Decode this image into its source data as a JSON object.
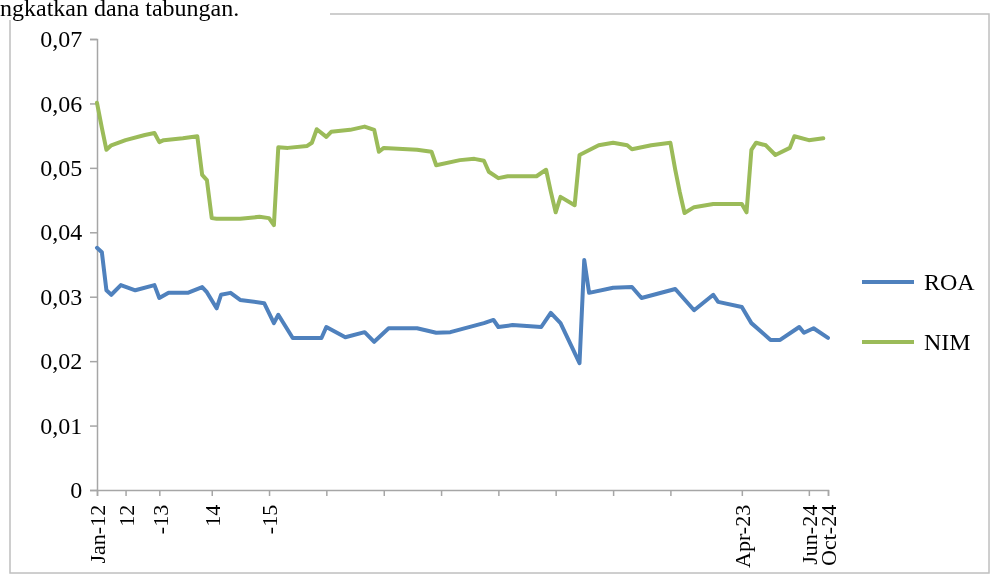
{
  "chart_data": {
    "type": "line",
    "annotations": [
      "ngkatkan dana tabungan."
    ],
    "xlim": [
      "2012-01",
      "2024-10"
    ],
    "xticks": [
      {
        "value": "2012-01",
        "label": "Jan-12"
      },
      {
        "value": "2012-07",
        "label": "12"
      },
      {
        "value": "2013-02",
        "label": "-13"
      },
      {
        "value": "2014-01",
        "label": "14"
      },
      {
        "value": "2015-01",
        "label": "-15"
      },
      {
        "value": "2016-01",
        "label": null
      },
      {
        "value": "2017-01",
        "label": null
      },
      {
        "value": "2018-01",
        "label": null
      },
      {
        "value": "2019-01",
        "label": null
      },
      {
        "value": "2020-01",
        "label": null
      },
      {
        "value": "2021-01",
        "label": null
      },
      {
        "value": "2022-01",
        "label": null
      },
      {
        "value": "2023-04",
        "label": "Apr-23"
      },
      {
        "value": "2024-06",
        "label": "Jun-24"
      },
      {
        "value": "2024-10",
        "label": "Oct-24"
      }
    ],
    "ylim": [
      0,
      0.07
    ],
    "yticks": [
      {
        "value": 0,
        "label": "0"
      },
      {
        "value": 0.01,
        "label": "0,01"
      },
      {
        "value": 0.02,
        "label": "0,02"
      },
      {
        "value": 0.03,
        "label": "0,03"
      },
      {
        "value": 0.04,
        "label": "0,04"
      },
      {
        "value": 0.05,
        "label": "0,05"
      },
      {
        "value": 0.06,
        "label": "0,06"
      },
      {
        "value": 0.07,
        "label": "0,07"
      }
    ],
    "grid": false,
    "legend": "right",
    "line_style": "solid",
    "marker": "none",
    "series": [
      {
        "name": "ROA",
        "color": "#4f81bd",
        "x": [
          "2012-01",
          "2012-02",
          "2012-03",
          "2012-04",
          "2012-06",
          "2012-09",
          "2013-01",
          "2013-02",
          "2013-04",
          "2013-08",
          "2013-11",
          "2013-12",
          "2014-02",
          "2014-03",
          "2014-05",
          "2014-07",
          "2014-12",
          "2015-02",
          "2015-03",
          "2015-06",
          "2015-12",
          "2016-01",
          "2016-05",
          "2016-09",
          "2016-11",
          "2017-02",
          "2017-08",
          "2017-12",
          "2018-03",
          "2018-10",
          "2018-12",
          "2019-01",
          "2019-04",
          "2019-10",
          "2019-12",
          "2020-02",
          "2020-06",
          "2020-07",
          "2020-08",
          "2021-01",
          "2021-05",
          "2021-07",
          "2022-02",
          "2022-06",
          "2022-10",
          "2022-11",
          "2023-04",
          "2023-06",
          "2023-10",
          "2023-12",
          "2024-04",
          "2024-05",
          "2024-07",
          "2024-10"
        ],
        "values": [
          0.0376,
          0.0369,
          0.031,
          0.0303,
          0.0318,
          0.031,
          0.0318,
          0.0298,
          0.0306,
          0.0306,
          0.0315,
          0.0307,
          0.0282,
          0.0303,
          0.0306,
          0.0295,
          0.029,
          0.0259,
          0.0272,
          0.0236,
          0.0236,
          0.0253,
          0.0237,
          0.0245,
          0.023,
          0.0251,
          0.0251,
          0.0244,
          0.0245,
          0.0259,
          0.0264,
          0.0253,
          0.0256,
          0.0253,
          0.0275,
          0.0259,
          0.0197,
          0.0357,
          0.0306,
          0.0314,
          0.0315,
          0.0298,
          0.0312,
          0.0279,
          0.0303,
          0.0292,
          0.0284,
          0.0259,
          0.0233,
          0.0233,
          0.0253,
          0.0244,
          0.0251,
          0.0236
        ]
      },
      {
        "name": "NIM",
        "color": "#9bbb59",
        "x": [
          "2012-01",
          "2012-02",
          "2012-03",
          "2012-04",
          "2012-07",
          "2012-11",
          "2013-01",
          "2013-02",
          "2013-03",
          "2013-07",
          "2013-10",
          "2013-11",
          "2013-12",
          "2014-01",
          "2014-02",
          "2014-07",
          "2014-11",
          "2015-01",
          "2015-02",
          "2015-03",
          "2015-05",
          "2015-09",
          "2015-10",
          "2015-11",
          "2016-01",
          "2016-02",
          "2016-06",
          "2016-09",
          "2016-11",
          "2016-12",
          "2017-01",
          "2017-08",
          "2017-11",
          "2017-12",
          "2018-05",
          "2018-08",
          "2018-10",
          "2018-11",
          "2019-01",
          "2019-03",
          "2019-09",
          "2019-10",
          "2019-11",
          "2019-12",
          "2020-01",
          "2020-02",
          "2020-05",
          "2020-06",
          "2020-10",
          "2021-01",
          "2021-04",
          "2021-05",
          "2021-09",
          "2022-01",
          "2022-02",
          "2022-03",
          "2022-04",
          "2022-06",
          "2022-10",
          "2023-04",
          "2023-05",
          "2023-06",
          "2023-07",
          "2023-09",
          "2023-11",
          "2024-02",
          "2024-03",
          "2024-06",
          "2024-09"
        ],
        "values": [
          0.0601,
          0.0562,
          0.0528,
          0.0535,
          0.0543,
          0.0551,
          0.0554,
          0.054,
          0.0543,
          0.0546,
          0.0549,
          0.0489,
          0.0481,
          0.0422,
          0.0421,
          0.0421,
          0.0424,
          0.0422,
          0.0411,
          0.0532,
          0.0531,
          0.0534,
          0.0539,
          0.056,
          0.0548,
          0.0556,
          0.0559,
          0.0564,
          0.0559,
          0.0525,
          0.0531,
          0.0528,
          0.0525,
          0.0504,
          0.0512,
          0.0514,
          0.0511,
          0.0494,
          0.0484,
          0.0487,
          0.0487,
          0.0492,
          0.0497,
          0.0463,
          0.0431,
          0.0455,
          0.0442,
          0.052,
          0.0535,
          0.0539,
          0.0535,
          0.0529,
          0.0535,
          0.0539,
          0.0497,
          0.0463,
          0.043,
          0.0439,
          0.0444,
          0.0444,
          0.0431,
          0.0528,
          0.0539,
          0.0535,
          0.052,
          0.0531,
          0.0549,
          0.0543,
          0.0546
        ]
      }
    ]
  }
}
